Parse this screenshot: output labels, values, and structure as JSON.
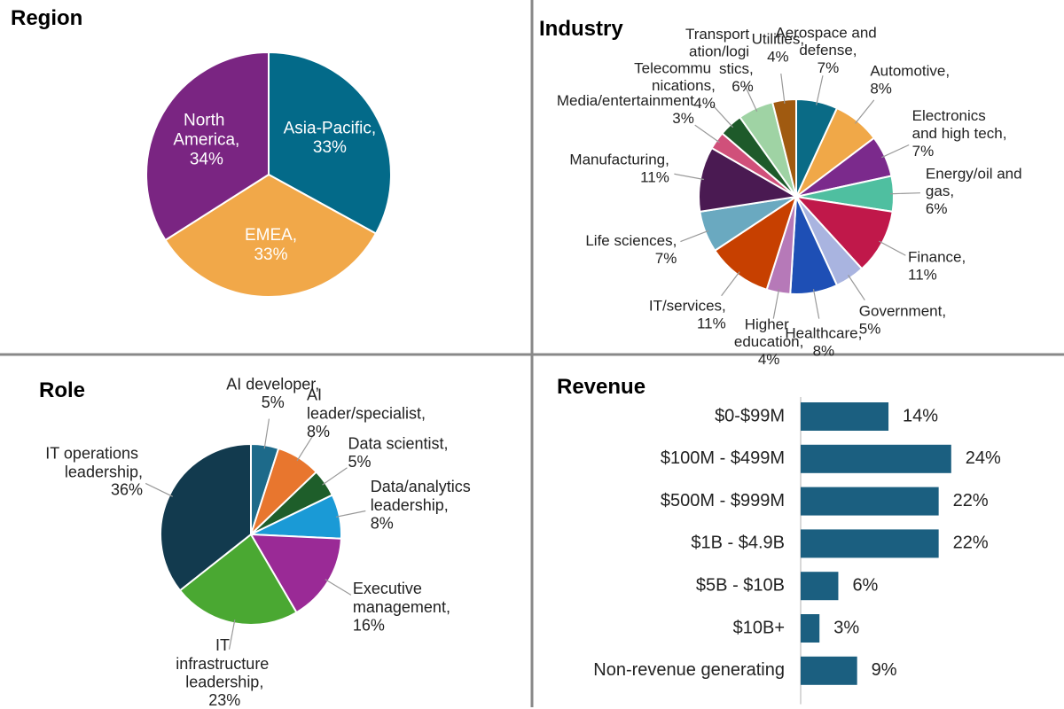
{
  "chart_data": [
    {
      "type": "pie",
      "title": "Region",
      "categories": [
        "Asia-Pacific,",
        "EMEA,",
        "North America,"
      ],
      "values": [
        33,
        33,
        34
      ],
      "value_labels": [
        "33%",
        "33%",
        "34%"
      ],
      "colors": [
        "#036a89",
        "#f1a849",
        "#7a2582"
      ]
    },
    {
      "type": "pie",
      "title": "Industry",
      "categories": [
        "Aerospace and defense,",
        "Automotive,",
        "Electronics and high tech,",
        "Energy/oil and gas,",
        "Finance,",
        "Government,",
        "Healthcare,",
        "Higher education,",
        "IT/services,",
        "Life sciences,",
        "Manufacturing,",
        "Media/entertainment",
        "Telecommu nications,",
        "Transport ation/logi stics,",
        "Utilities,"
      ],
      "values": [
        7,
        8,
        7,
        6,
        11,
        5,
        8,
        4,
        11,
        7,
        11,
        3,
        4,
        6,
        4
      ],
      "value_labels": [
        "7%",
        "8%",
        "7%",
        "6%",
        "11%",
        "5%",
        "8%",
        "4%",
        "11%",
        "7%",
        "11%",
        "3%",
        "4%",
        "6%",
        "4%"
      ],
      "colors": [
        "#0a6b86",
        "#f0a848",
        "#7b2a8c",
        "#4fbfa0",
        "#c0184a",
        "#a9b4e0",
        "#1e4fb5",
        "#b679b8",
        "#c74000",
        "#6aa9c0",
        "#4a1a52",
        "#d0507a",
        "#1e5a2a",
        "#9fd3a4",
        "#a05a10"
      ]
    },
    {
      "type": "pie",
      "title": "Role",
      "categories": [
        "AI developer,",
        "AI leader/specialist,",
        "Data scientist,",
        "Data/analytics leadership,",
        "Executive management,",
        "IT infrastructure leadership,",
        "IT operations leadership,"
      ],
      "values": [
        5,
        8,
        5,
        8,
        16,
        23,
        36
      ],
      "value_labels": [
        "5%",
        "8%",
        "5%",
        "8%",
        "16%",
        "23%",
        "36%"
      ],
      "colors": [
        "#1d6a8a",
        "#e8762e",
        "#1e5e2a",
        "#1a9ad6",
        "#9a2a96",
        "#4aa832",
        "#123a4e"
      ]
    },
    {
      "type": "bar",
      "title": "Revenue",
      "categories": [
        "$0-$99M",
        "$100M - $499M",
        "$500M - $999M",
        "$1B - $4.9B",
        "$5B - $10B",
        "$10B+",
        "Non-revenue generating"
      ],
      "values": [
        14,
        24,
        22,
        22,
        6,
        3,
        9
      ],
      "value_labels": [
        "14%",
        "24%",
        "22%",
        "22%",
        "6%",
        "3%",
        "9%"
      ],
      "color": "#1b5f80",
      "xlim": [
        0,
        40
      ]
    }
  ]
}
